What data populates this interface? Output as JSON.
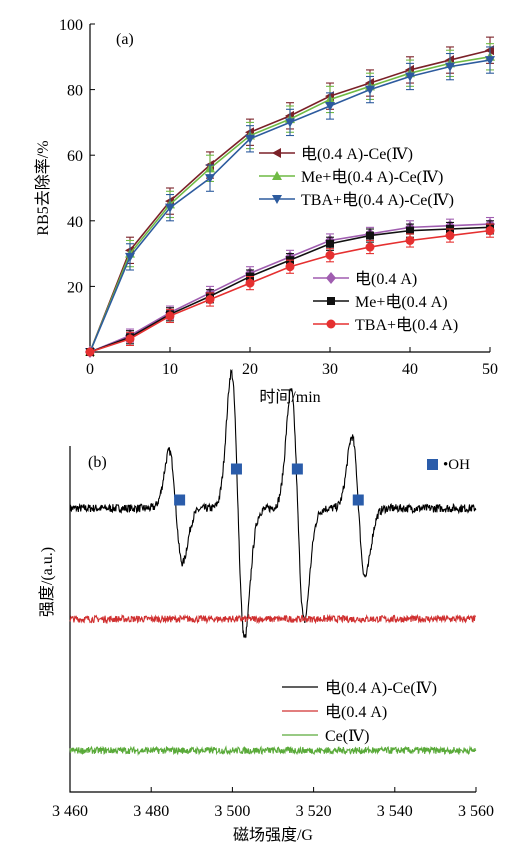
{
  "chart_data": [
    {
      "type": "line",
      "panel_label": "(a)",
      "xlabel": "时间/min",
      "ylabel": "RB5去除率/%",
      "xlim": [
        0,
        50
      ],
      "ylim": [
        0,
        100
      ],
      "xticks": [
        0,
        10,
        20,
        30,
        40,
        50
      ],
      "yticks": [
        20,
        40,
        60,
        80,
        100
      ],
      "grid": false,
      "x": [
        0,
        5,
        10,
        15,
        20,
        25,
        30,
        35,
        40,
        45,
        50
      ],
      "series": [
        {
          "name": "电(0.4 A)-Ce(Ⅳ)",
          "color": "#7b2128",
          "marker": "tri-left",
          "values": [
            0,
            31,
            46,
            57,
            67,
            72,
            78,
            82,
            86,
            89,
            92
          ],
          "error": 4
        },
        {
          "name": "Me+电(0.4 A)-Ce(Ⅳ)",
          "color": "#6fba44",
          "marker": "tri-up",
          "values": [
            0,
            30,
            45,
            56,
            66,
            71,
            77,
            81,
            85,
            88,
            90
          ],
          "error": 4
        },
        {
          "name": "TBA+电(0.4 A)-Ce(Ⅳ)",
          "color": "#2d5b9e",
          "marker": "tri-down",
          "values": [
            0,
            29,
            44,
            53,
            65,
            70,
            75,
            80,
            84,
            87,
            89
          ],
          "error": 4
        },
        {
          "name": "电(0.4 A)",
          "color": "#a05db0",
          "marker": "diamond",
          "values": [
            0,
            5,
            12,
            18,
            24,
            29,
            34,
            36,
            38,
            38.5,
            39
          ],
          "error": 2
        },
        {
          "name": "Me+电(0.4 A)",
          "color": "#111111",
          "marker": "square",
          "values": [
            0,
            4.5,
            11.5,
            17,
            23,
            28,
            33,
            35.5,
            37,
            37.5,
            38
          ],
          "error": 2
        },
        {
          "name": "TBA+电(0.4 A)",
          "color": "#e53030",
          "marker": "circle",
          "values": [
            0,
            4,
            11,
            16,
            21,
            26,
            29.5,
            32,
            34,
            35.5,
            37
          ],
          "error": 2
        }
      ]
    },
    {
      "type": "line",
      "panel_label": "(b)",
      "xlabel": "磁场强度/G",
      "ylabel": "强度/(a.u.)",
      "xlim": [
        3460,
        3560
      ],
      "xticks": [
        "3 460",
        "3 480",
        "3 500",
        "3 520",
        "3 540",
        "3 560"
      ],
      "marker_legend": "•OH",
      "marker_color": "#2a5caa",
      "oh_marker_positions": [
        3487,
        3501,
        3516,
        3531
      ],
      "series": [
        {
          "name": "电(0.4 A)-Ce(Ⅳ)",
          "color": "#000000",
          "baseline": 0.82,
          "noise": 0.012,
          "peaks": [
            {
              "center": 3486,
              "amplitude": 0.16
            },
            {
              "center": 3501.3,
              "amplitude": 0.38
            },
            {
              "center": 3516,
              "amplitude": 0.33
            },
            {
              "center": 3531,
              "amplitude": 0.2
            }
          ]
        },
        {
          "name": "电(0.4 A)",
          "color": "#d03030",
          "baseline": 0.5,
          "noise": 0.01,
          "peaks": []
        },
        {
          "name": "Ce(Ⅳ)",
          "color": "#5aaa3a",
          "baseline": 0.12,
          "noise": 0.01,
          "peaks": []
        }
      ]
    }
  ]
}
